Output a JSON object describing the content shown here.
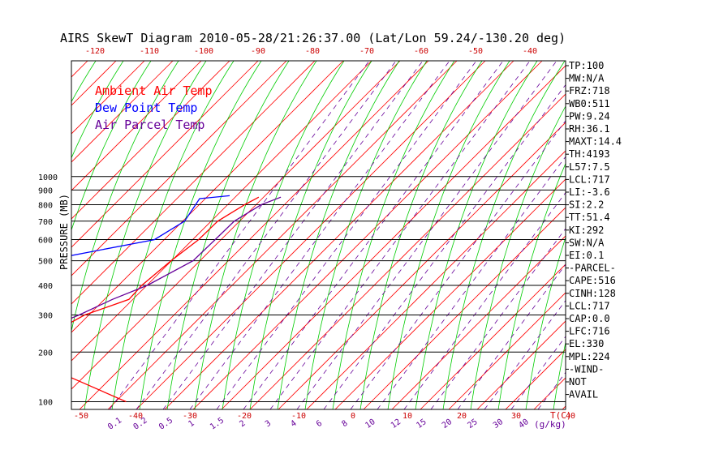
{
  "chart_data": {
    "type": "line",
    "title": "AIRS SkewT Diagram 2010-05-28/21:26:37.00 (Lat/Lon 59.24/-130.20 deg)",
    "ylabel": "PRESSURE (MB)",
    "xlabel": "T(C)",
    "mixing_ratio_label": "(g/kg)",
    "scale": "log-pressure skew-T",
    "ylim": [
      1000,
      100
    ],
    "pressure_ticks": [
      100,
      200,
      300,
      400,
      500,
      600,
      700,
      800,
      900,
      1000
    ],
    "top_temp_ticks": [
      -120,
      -110,
      -100,
      -90,
      -80,
      -70,
      -60,
      -50,
      -40
    ],
    "bottom_temp_ticks": [
      -50,
      -40,
      -30,
      -20,
      -10,
      0,
      10,
      20,
      30,
      40
    ],
    "mixing_ratio_ticks": [
      "0.1",
      "0.2",
      "0.5",
      "1",
      "1.5",
      "2",
      "3",
      "4",
      "6",
      "8",
      "10",
      "12",
      "15",
      "20",
      "25",
      "30",
      "40"
    ],
    "legend": [
      {
        "label": "Ambient Air Temp",
        "color": "#ff0000"
      },
      {
        "label": "Dew Point Temp",
        "color": "#0000ff"
      },
      {
        "label": "Air Parcel Temp",
        "color": "#660099"
      }
    ],
    "colors": {
      "dry_adiabat": "#ff0000",
      "moist_adiabat": "#00cc00",
      "mixing_ratio": "#660099",
      "isobar": "#000000"
    },
    "series": [
      {
        "name": "Ambient Air Temp",
        "color": "#ff0000",
        "points": [
          [
            850,
            11
          ],
          [
            800,
            7
          ],
          [
            700,
            -1
          ],
          [
            600,
            -8
          ],
          [
            500,
            -17
          ],
          [
            400,
            -27
          ],
          [
            350,
            -32
          ],
          [
            300,
            -43
          ],
          [
            250,
            -52
          ],
          [
            240,
            -52
          ],
          [
            200,
            -58
          ],
          [
            150,
            -58
          ],
          [
            100,
            -52
          ]
        ]
      },
      {
        "name": "Dew Point Temp",
        "color": "#0000ff",
        "points": [
          [
            860,
            6
          ],
          [
            840,
            0
          ],
          [
            700,
            -7
          ],
          [
            600,
            -16
          ],
          [
            500,
            -40
          ],
          [
            400,
            -55
          ],
          [
            300,
            -57
          ],
          [
            250,
            -53
          ],
          [
            200,
            -68
          ],
          [
            150,
            -82
          ],
          [
            100,
            -96
          ]
        ]
      },
      {
        "name": "Air Parcel Temp",
        "color": "#660099",
        "points": [
          [
            850,
            15
          ],
          [
            800,
            10
          ],
          [
            700,
            2
          ],
          [
            600,
            -5
          ],
          [
            500,
            -13
          ],
          [
            400,
            -26
          ],
          [
            350,
            -35
          ],
          [
            300,
            -44
          ],
          [
            250,
            -55
          ],
          [
            200,
            -67
          ],
          [
            150,
            -84
          ],
          [
            100,
            -104
          ]
        ]
      }
    ],
    "indices": [
      "TP:100",
      "MW:N/A",
      "FRZ:718",
      "WB0:511",
      "PW:9.24",
      "RH:36.1",
      "MAXT:14.4",
      "TH:4193",
      "L57:7.5",
      "LCL:717",
      "LI:-3.6",
      "SI:2.2",
      "TT:51.4",
      "KI:292",
      "SW:N/A",
      "EI:0.1",
      "-PARCEL-",
      "CAPE:516",
      "CINH:128",
      "LCL:717",
      "CAP:0.0",
      "LFC:716",
      "EL:330",
      "MPL:224",
      "-WIND-",
      "NOT",
      "AVAIL"
    ]
  }
}
